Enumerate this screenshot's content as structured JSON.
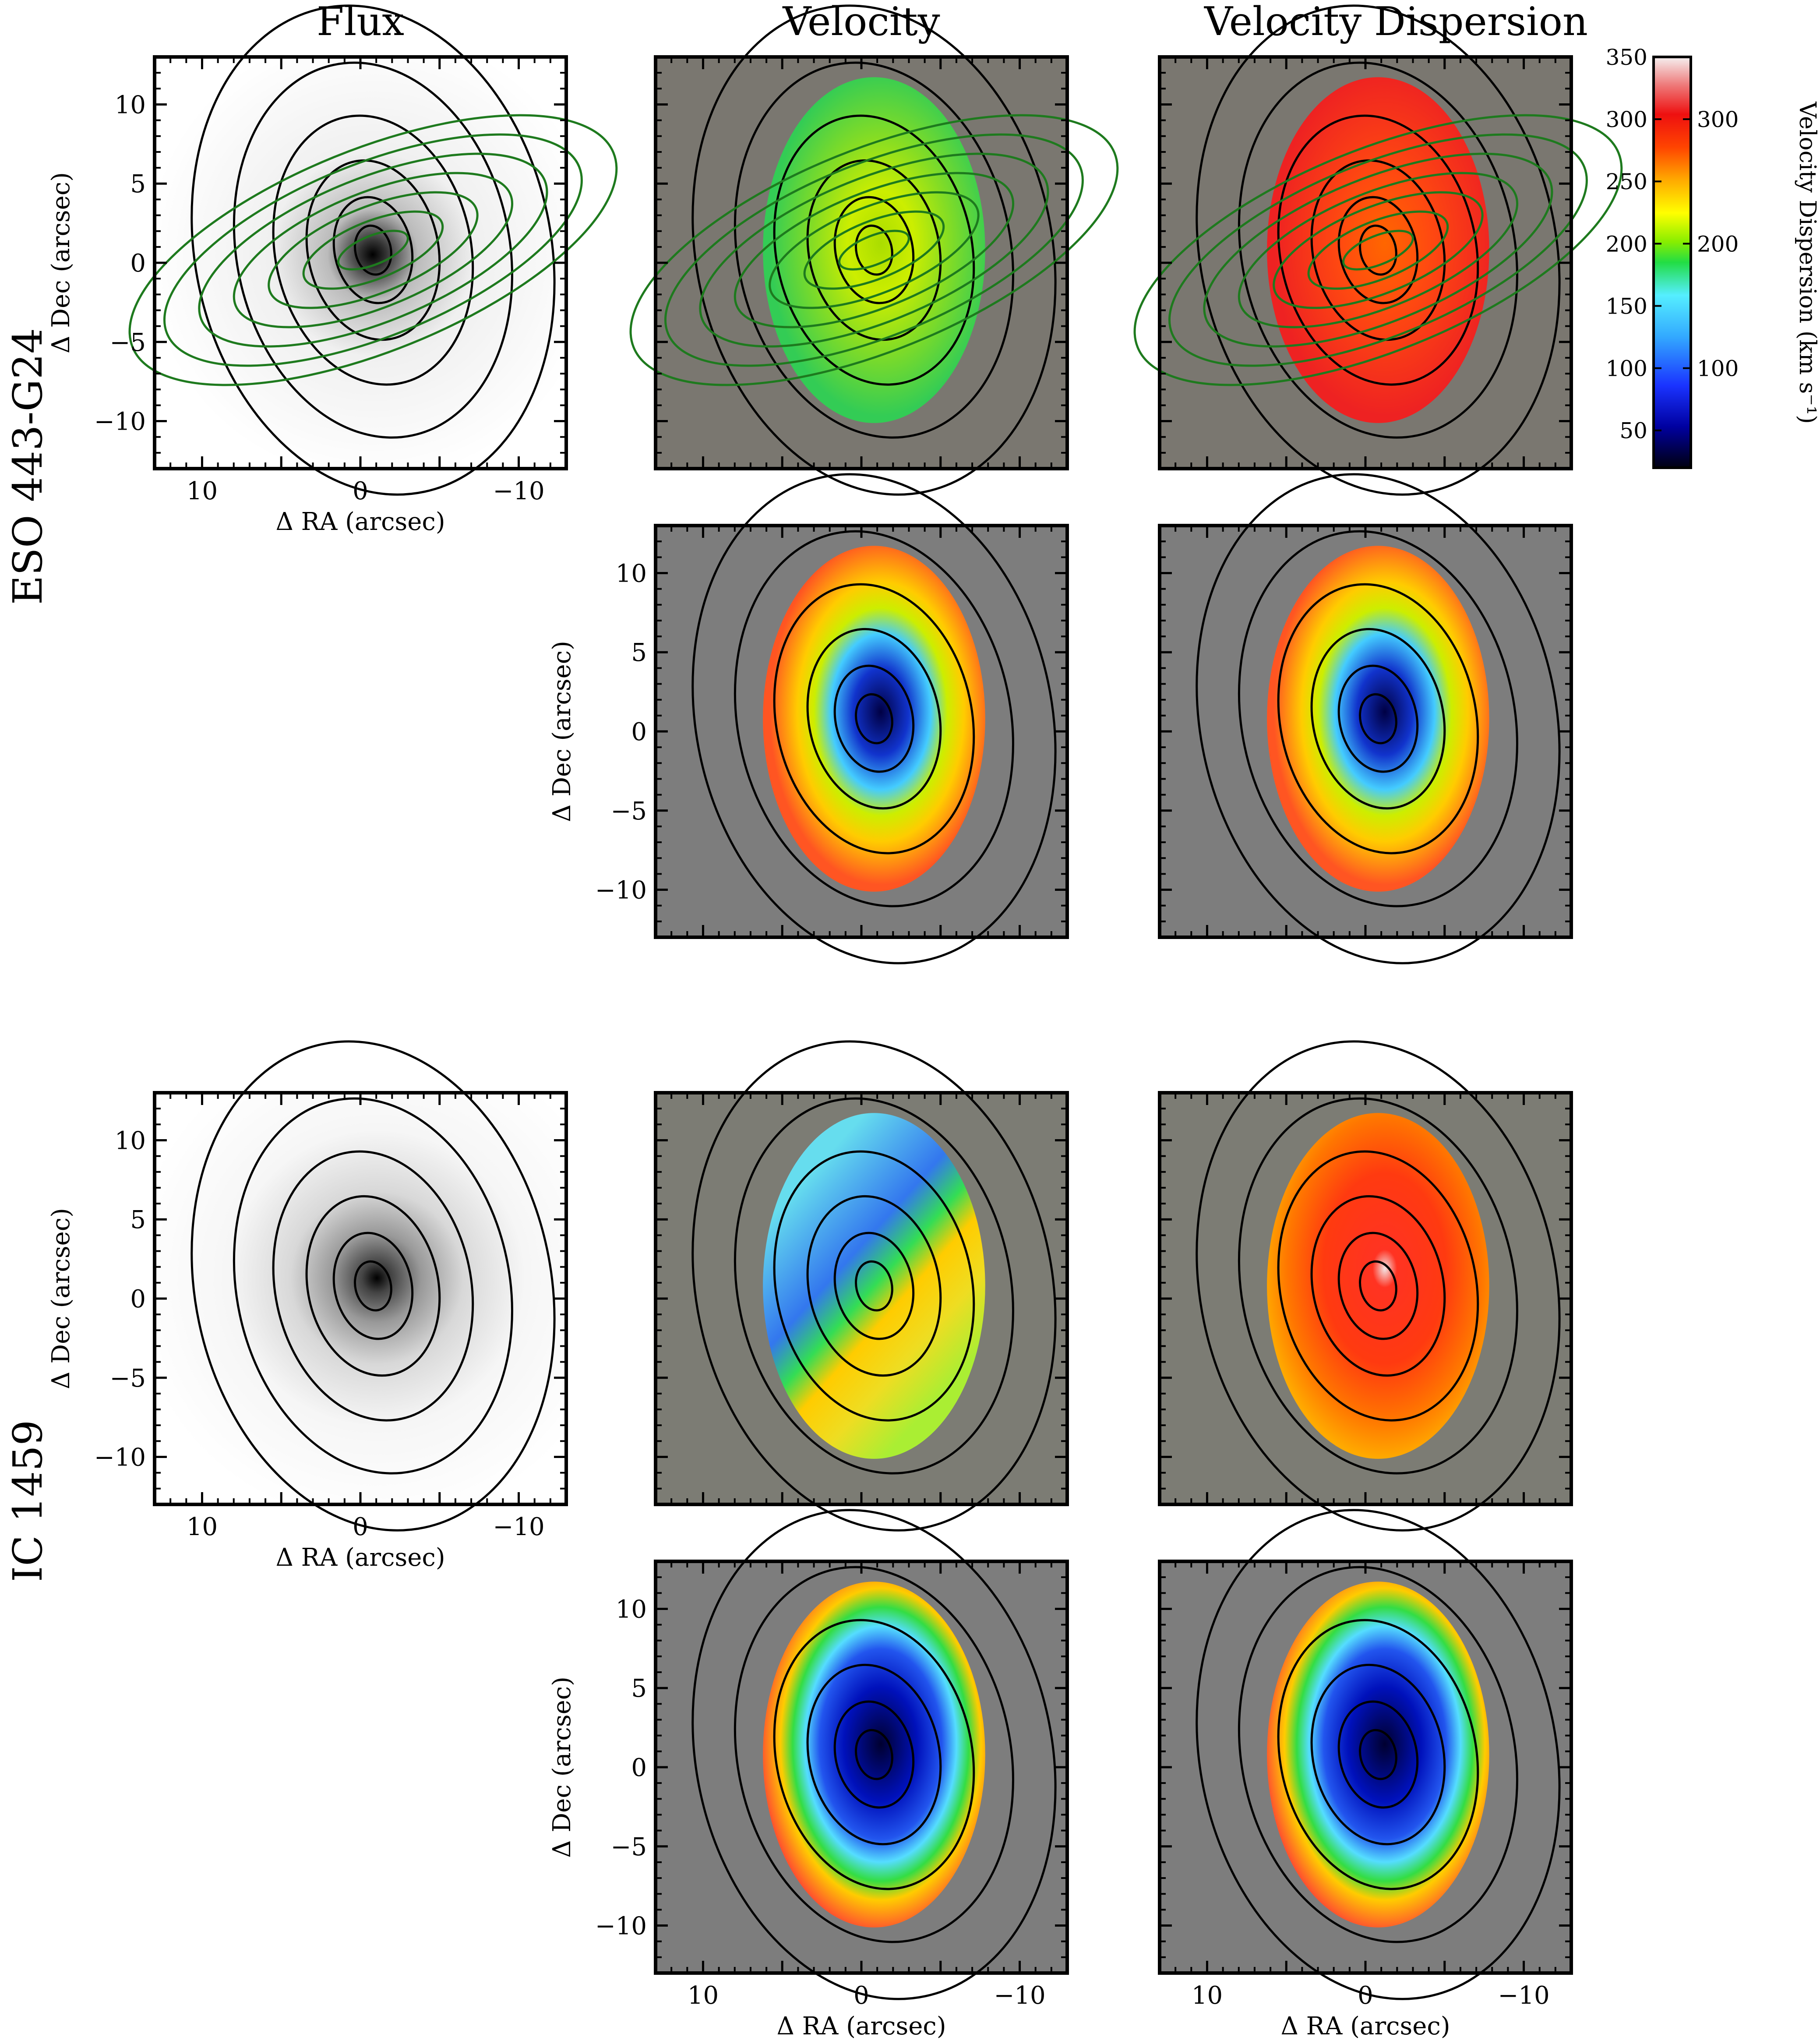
{
  "figure": {
    "column_titles": [
      "Flux",
      "Velocity",
      "Velocity Dispersion"
    ],
    "galaxies": [
      {
        "name": "ESO 443-G24"
      },
      {
        "name": "IC 1459"
      }
    ]
  },
  "chart_data": {
    "type": "heatmap",
    "panels": [
      {
        "galaxy": "ESO 443-G24",
        "row": 1,
        "column": "Flux",
        "xlabel": "Δ RA (arcsec)",
        "ylabel": "Δ Dec (arcsec)",
        "xlim": [
          13,
          -13
        ],
        "ylim": [
          -13,
          13
        ],
        "xticks": [
          10,
          0,
          -10
        ],
        "yticks": [
          -10,
          -5,
          0,
          5,
          10
        ],
        "overlay": "green contours"
      },
      {
        "galaxy": "ESO 443-G24",
        "row": 1,
        "column": "Velocity",
        "xlim": [
          13,
          -13
        ],
        "ylim": [
          -13,
          13
        ],
        "overlay": "green contours"
      },
      {
        "galaxy": "ESO 443-G24",
        "row": 1,
        "column": "Velocity Dispersion",
        "xlim": [
          13,
          -13
        ],
        "ylim": [
          -13,
          13
        ],
        "overlay": "green contours"
      },
      {
        "galaxy": "ESO 443-G24",
        "row": 2,
        "column": "Velocity",
        "ylabel": "Δ Dec (arcsec)",
        "xlim": [
          13,
          -13
        ],
        "ylim": [
          -13,
          13
        ],
        "yticks": [
          -10,
          -5,
          0,
          5,
          10
        ]
      },
      {
        "galaxy": "ESO 443-G24",
        "row": 2,
        "column": "Velocity Dispersion",
        "xlim": [
          13,
          -13
        ],
        "ylim": [
          -13,
          13
        ]
      },
      {
        "galaxy": "IC 1459",
        "row": 1,
        "column": "Flux",
        "xlabel": "Δ RA (arcsec)",
        "ylabel": "Δ Dec (arcsec)",
        "xlim": [
          13,
          -13
        ],
        "ylim": [
          -13,
          13
        ],
        "xticks": [
          10,
          0,
          -10
        ],
        "yticks": [
          -10,
          -5,
          0,
          5,
          10
        ]
      },
      {
        "galaxy": "IC 1459",
        "row": 1,
        "column": "Velocity",
        "xlim": [
          13,
          -13
        ],
        "ylim": [
          -13,
          13
        ]
      },
      {
        "galaxy": "IC 1459",
        "row": 1,
        "column": "Velocity Dispersion",
        "xlim": [
          13,
          -13
        ],
        "ylim": [
          -13,
          13
        ]
      },
      {
        "galaxy": "IC 1459",
        "row": 2,
        "column": "Velocity",
        "xlabel": "Δ RA (arcsec)",
        "ylabel": "Δ Dec (arcsec)",
        "xlim": [
          13,
          -13
        ],
        "ylim": [
          -13,
          13
        ],
        "xticks": [
          10,
          0,
          -10
        ],
        "yticks": [
          -10,
          -5,
          0,
          5,
          10
        ]
      },
      {
        "galaxy": "IC 1459",
        "row": 2,
        "column": "Velocity Dispersion",
        "xlabel": "Δ RA (arcsec)",
        "xlim": [
          13,
          -13
        ],
        "ylim": [
          -13,
          13
        ],
        "xticks": [
          10,
          0,
          -10
        ]
      }
    ],
    "colorbar": {
      "label": "Velocity Dispersion (km s$^{-1}$)",
      "range": [
        20,
        350
      ],
      "left_ticks": [
        50,
        100,
        150,
        200,
        250,
        300,
        350
      ],
      "right_ticks": [
        100,
        200,
        300
      ],
      "colormap": "black-blue-cyan-green-yellow-orange-red-white"
    },
    "tick_labels": {
      "x": [
        "10",
        "0",
        "−10"
      ],
      "y": [
        "−10",
        "−5",
        "0",
        "5",
        "10"
      ]
    },
    "axis_labels": {
      "x": "Δ RA (arcsec)",
      "y": "Δ Dec (arcsec)"
    }
  }
}
